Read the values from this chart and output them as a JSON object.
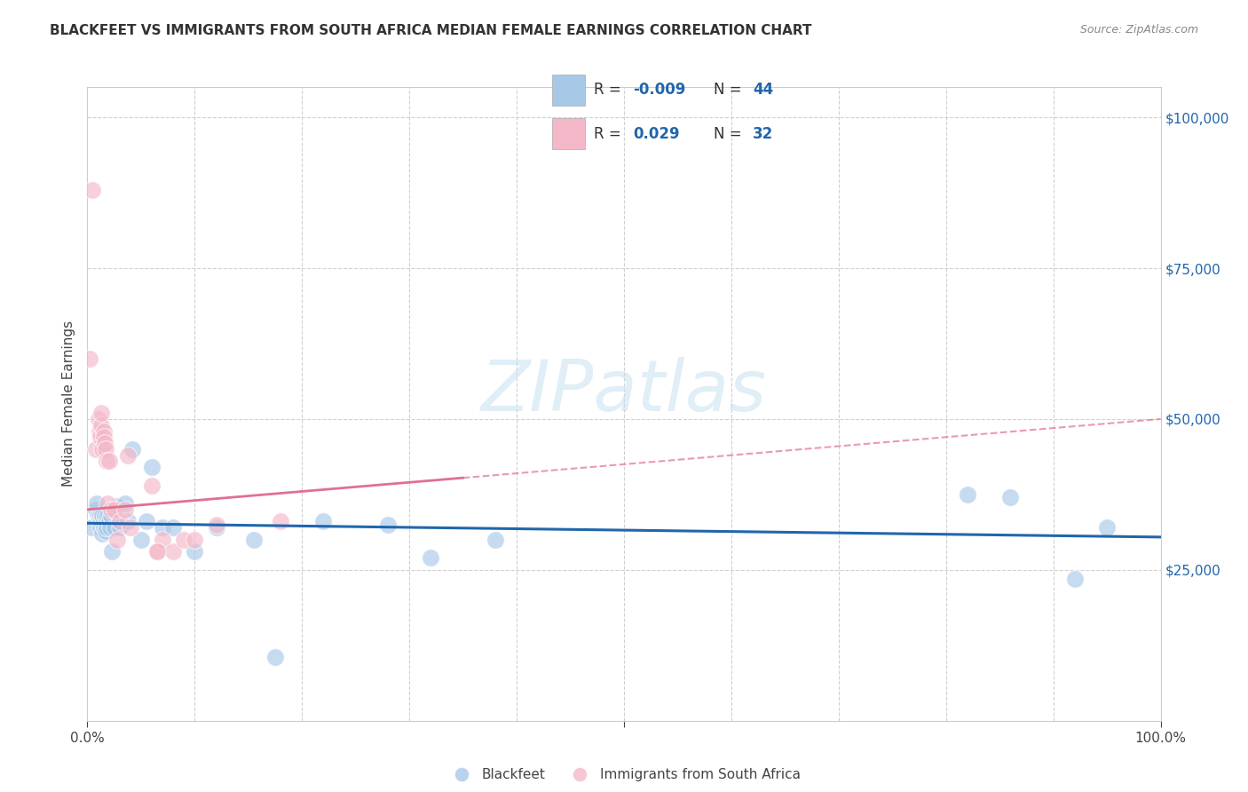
{
  "title": "BLACKFEET VS IMMIGRANTS FROM SOUTH AFRICA MEDIAN FEMALE EARNINGS CORRELATION CHART",
  "source": "Source: ZipAtlas.com",
  "ylabel": "Median Female Earnings",
  "xlim": [
    0,
    1.0
  ],
  "ylim": [
    0,
    105000
  ],
  "watermark": "ZIPatlas",
  "color_blue": "#a8c8e8",
  "color_pink": "#f4b8c8",
  "line_color_blue": "#2166ac",
  "line_color_pink": "#e07090",
  "background_color": "#ffffff",
  "grid_color": "#d0d0d0",
  "legend_text_color": "#2166ac",
  "blue_x": [
    0.004,
    0.008,
    0.009,
    0.01,
    0.011,
    0.012,
    0.012,
    0.013,
    0.014,
    0.014,
    0.015,
    0.015,
    0.016,
    0.017,
    0.018,
    0.018,
    0.019,
    0.02,
    0.021,
    0.022,
    0.023,
    0.025,
    0.028,
    0.03,
    0.035,
    0.038,
    0.042,
    0.05,
    0.055,
    0.06,
    0.07,
    0.08,
    0.1,
    0.12,
    0.155,
    0.175,
    0.22,
    0.28,
    0.32,
    0.38,
    0.82,
    0.86,
    0.92,
    0.95
  ],
  "blue_y": [
    32000,
    35000,
    36000,
    34000,
    33000,
    34000,
    32000,
    33000,
    31000,
    34000,
    33000,
    32000,
    34000,
    31500,
    33000,
    32000,
    34000,
    33000,
    32000,
    34000,
    28000,
    32000,
    35500,
    32000,
    36000,
    33000,
    45000,
    30000,
    33000,
    42000,
    32000,
    32000,
    28000,
    32000,
    30000,
    10500,
    33000,
    32500,
    27000,
    30000,
    37500,
    37000,
    23500,
    32000
  ],
  "pink_x": [
    0.002,
    0.005,
    0.008,
    0.01,
    0.011,
    0.012,
    0.013,
    0.013,
    0.014,
    0.015,
    0.015,
    0.016,
    0.017,
    0.018,
    0.019,
    0.02,
    0.022,
    0.025,
    0.028,
    0.03,
    0.035,
    0.038,
    0.04,
    0.06,
    0.065,
    0.07,
    0.08,
    0.09,
    0.1,
    0.12,
    0.065,
    0.18
  ],
  "pink_y": [
    60000,
    88000,
    45000,
    50000,
    48000,
    47000,
    49000,
    51000,
    45000,
    48000,
    47000,
    46000,
    45000,
    43000,
    36000,
    43000,
    35000,
    35000,
    30000,
    33000,
    35000,
    44000,
    32000,
    39000,
    28000,
    30000,
    28000,
    30000,
    30000,
    32500,
    28000,
    33000
  ]
}
